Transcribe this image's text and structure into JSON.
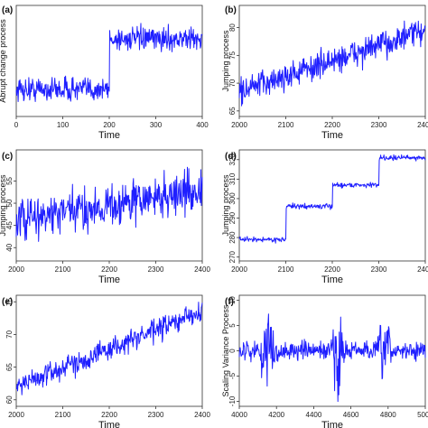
{
  "chart_data": [
    {
      "type": "line",
      "panel_label": "(a)",
      "ylabel": "Abrupt change process",
      "xlabel": "Time",
      "xlim": [
        0,
        400
      ],
      "ylim": [
        -0.8,
        4.5
      ],
      "xticks": [
        "0",
        "100",
        "200",
        "300",
        "400"
      ],
      "yticks": [],
      "color": "#1f1fff",
      "segments": [
        {
          "x": [
            0,
            200
          ],
          "mean": 0.5,
          "spread": 0.55
        },
        {
          "x": [
            200,
            400
          ],
          "mean": 2.9,
          "spread": 0.5
        }
      ]
    },
    {
      "type": "line",
      "panel_label": "(b)",
      "ylabel": "Jumping process",
      "xlabel": "Time",
      "xlim": [
        2000,
        2400
      ],
      "ylim": [
        64,
        84
      ],
      "xticks": [
        "2000",
        "2100",
        "2200",
        "2300",
        "2400"
      ],
      "yticks": [
        "65",
        "70",
        "75",
        "80"
      ],
      "color": "#1f1fff",
      "trend": {
        "x": [
          2000,
          2400
        ],
        "y": [
          68.5,
          79.5
        ],
        "spread": 2.3
      }
    },
    {
      "type": "line",
      "panel_label": "(c)",
      "ylabel": "Jumping process",
      "xlabel": "Time",
      "xlim": [
        2000,
        2400
      ],
      "ylim": [
        37,
        62
      ],
      "xticks": [
        "2000",
        "2100",
        "2200",
        "2300",
        "2400"
      ],
      "yticks": [
        "40",
        "45",
        "50",
        "55"
      ],
      "color": "#1f1fff",
      "trend": {
        "x": [
          2000,
          2400
        ],
        "y": [
          46,
          53
        ],
        "spread": 4.5
      }
    },
    {
      "type": "line",
      "panel_label": "(d)",
      "ylabel": "Jumping process",
      "xlabel": "Time",
      "xlim": [
        2000,
        2400
      ],
      "ylim": [
        268,
        325
      ],
      "xticks": [
        "2000",
        "2100",
        "2200",
        "2300",
        "2400"
      ],
      "yticks": [
        "270",
        "280",
        "290",
        "300",
        "310",
        "320"
      ],
      "color": "#1f1fff",
      "segments": [
        {
          "x": [
            2000,
            2100
          ],
          "mean": 279,
          "spread": 1.2
        },
        {
          "x": [
            2100,
            2200
          ],
          "mean": 296,
          "spread": 1.2
        },
        {
          "x": [
            2200,
            2300
          ],
          "mean": 307,
          "spread": 1.2
        },
        {
          "x": [
            2300,
            2400
          ],
          "mean": 321,
          "spread": 1.2
        }
      ]
    },
    {
      "type": "line",
      "panel_label": "(e)",
      "ylabel": "",
      "xlabel": "Time",
      "xlim": [
        2000,
        2400
      ],
      "ylim": [
        59,
        76
      ],
      "xticks": [
        "2000",
        "2100",
        "2200",
        "2300",
        "2400"
      ],
      "yticks": [
        "60",
        "65",
        "70",
        "75"
      ],
      "color": "#1f1fff",
      "trend": {
        "x": [
          2000,
          2400
        ],
        "y": [
          62,
          73.5
        ],
        "spread": 1.6
      }
    },
    {
      "type": "line",
      "panel_label": "(f)",
      "ylabel": "Scaling Variance Process",
      "xlabel": "Time",
      "xlim": [
        4000,
        5000
      ],
      "ylim": [
        -11,
        11
      ],
      "xticks": [
        "4000",
        "4200",
        "4400",
        "4600",
        "4800",
        "5000"
      ],
      "yticks": [
        "-10",
        "-5",
        "0",
        "5",
        "10"
      ],
      "color": "#1f1fff",
      "volatility": {
        "base": 1.8,
        "bursts": [
          {
            "x": 4150,
            "amp": 7
          },
          {
            "x": 4530,
            "amp": 7.5
          },
          {
            "x": 4780,
            "amp": 5
          }
        ]
      }
    }
  ]
}
